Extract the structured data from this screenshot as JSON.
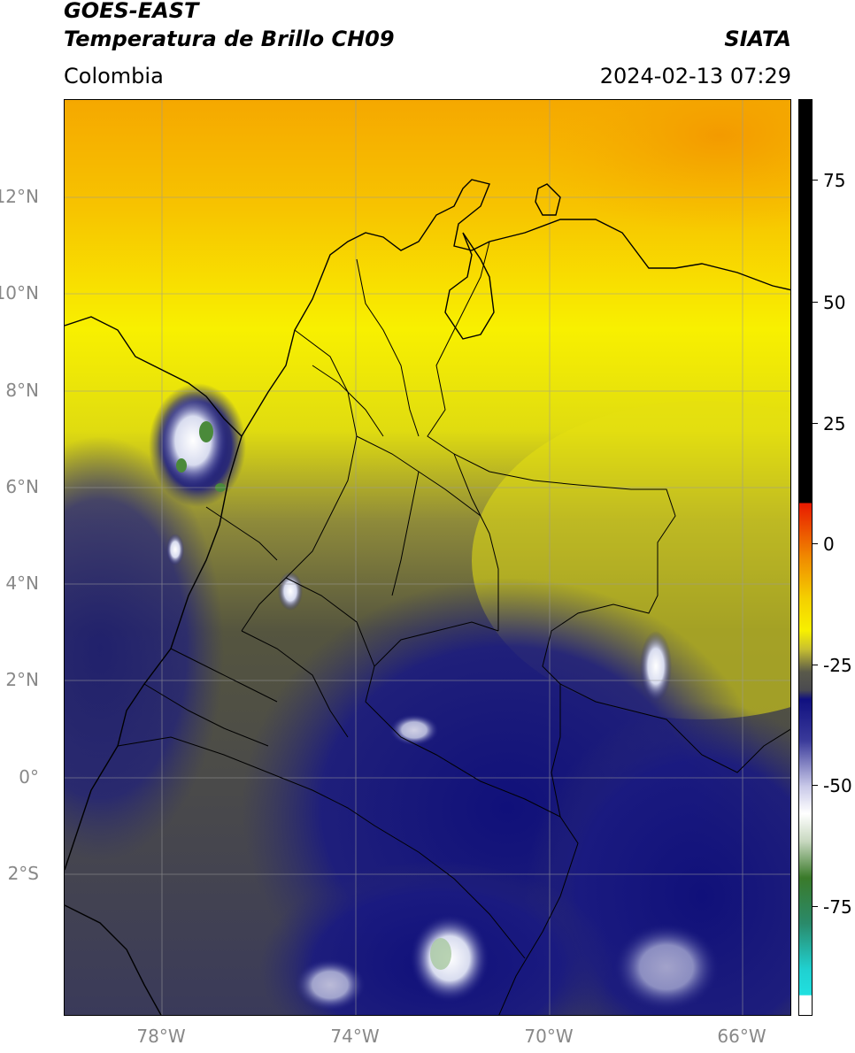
{
  "header": {
    "title_line1": "GOES-EAST",
    "title_line2": "Temperatura de Brillo CH09",
    "brand": "SIATA",
    "region": "Colombia",
    "datetime": "2024-02-13 07:29"
  },
  "map": {
    "lat_ticks": [
      "12°N",
      "10°N",
      "8°N",
      "6°N",
      "4°N",
      "2°N",
      "0°",
      "2°S"
    ],
    "lon_ticks": [
      "78°W",
      "74°W",
      "70°W",
      "66°W"
    ]
  },
  "colorbar": {
    "ticks": [
      "75",
      "50",
      "25",
      "0",
      "-25",
      "-50",
      "-75"
    ],
    "colors": {
      "cold_white": "#ffffff",
      "cyan": "#20d0d0",
      "green": "#3a7a2a",
      "light": "#e8ecec",
      "navy": "#1a1a7a",
      "olive": "#6a6a3a",
      "yellow": "#f5f000",
      "orange": "#f5a000",
      "red": "#e82000",
      "black": "#000000"
    }
  }
}
